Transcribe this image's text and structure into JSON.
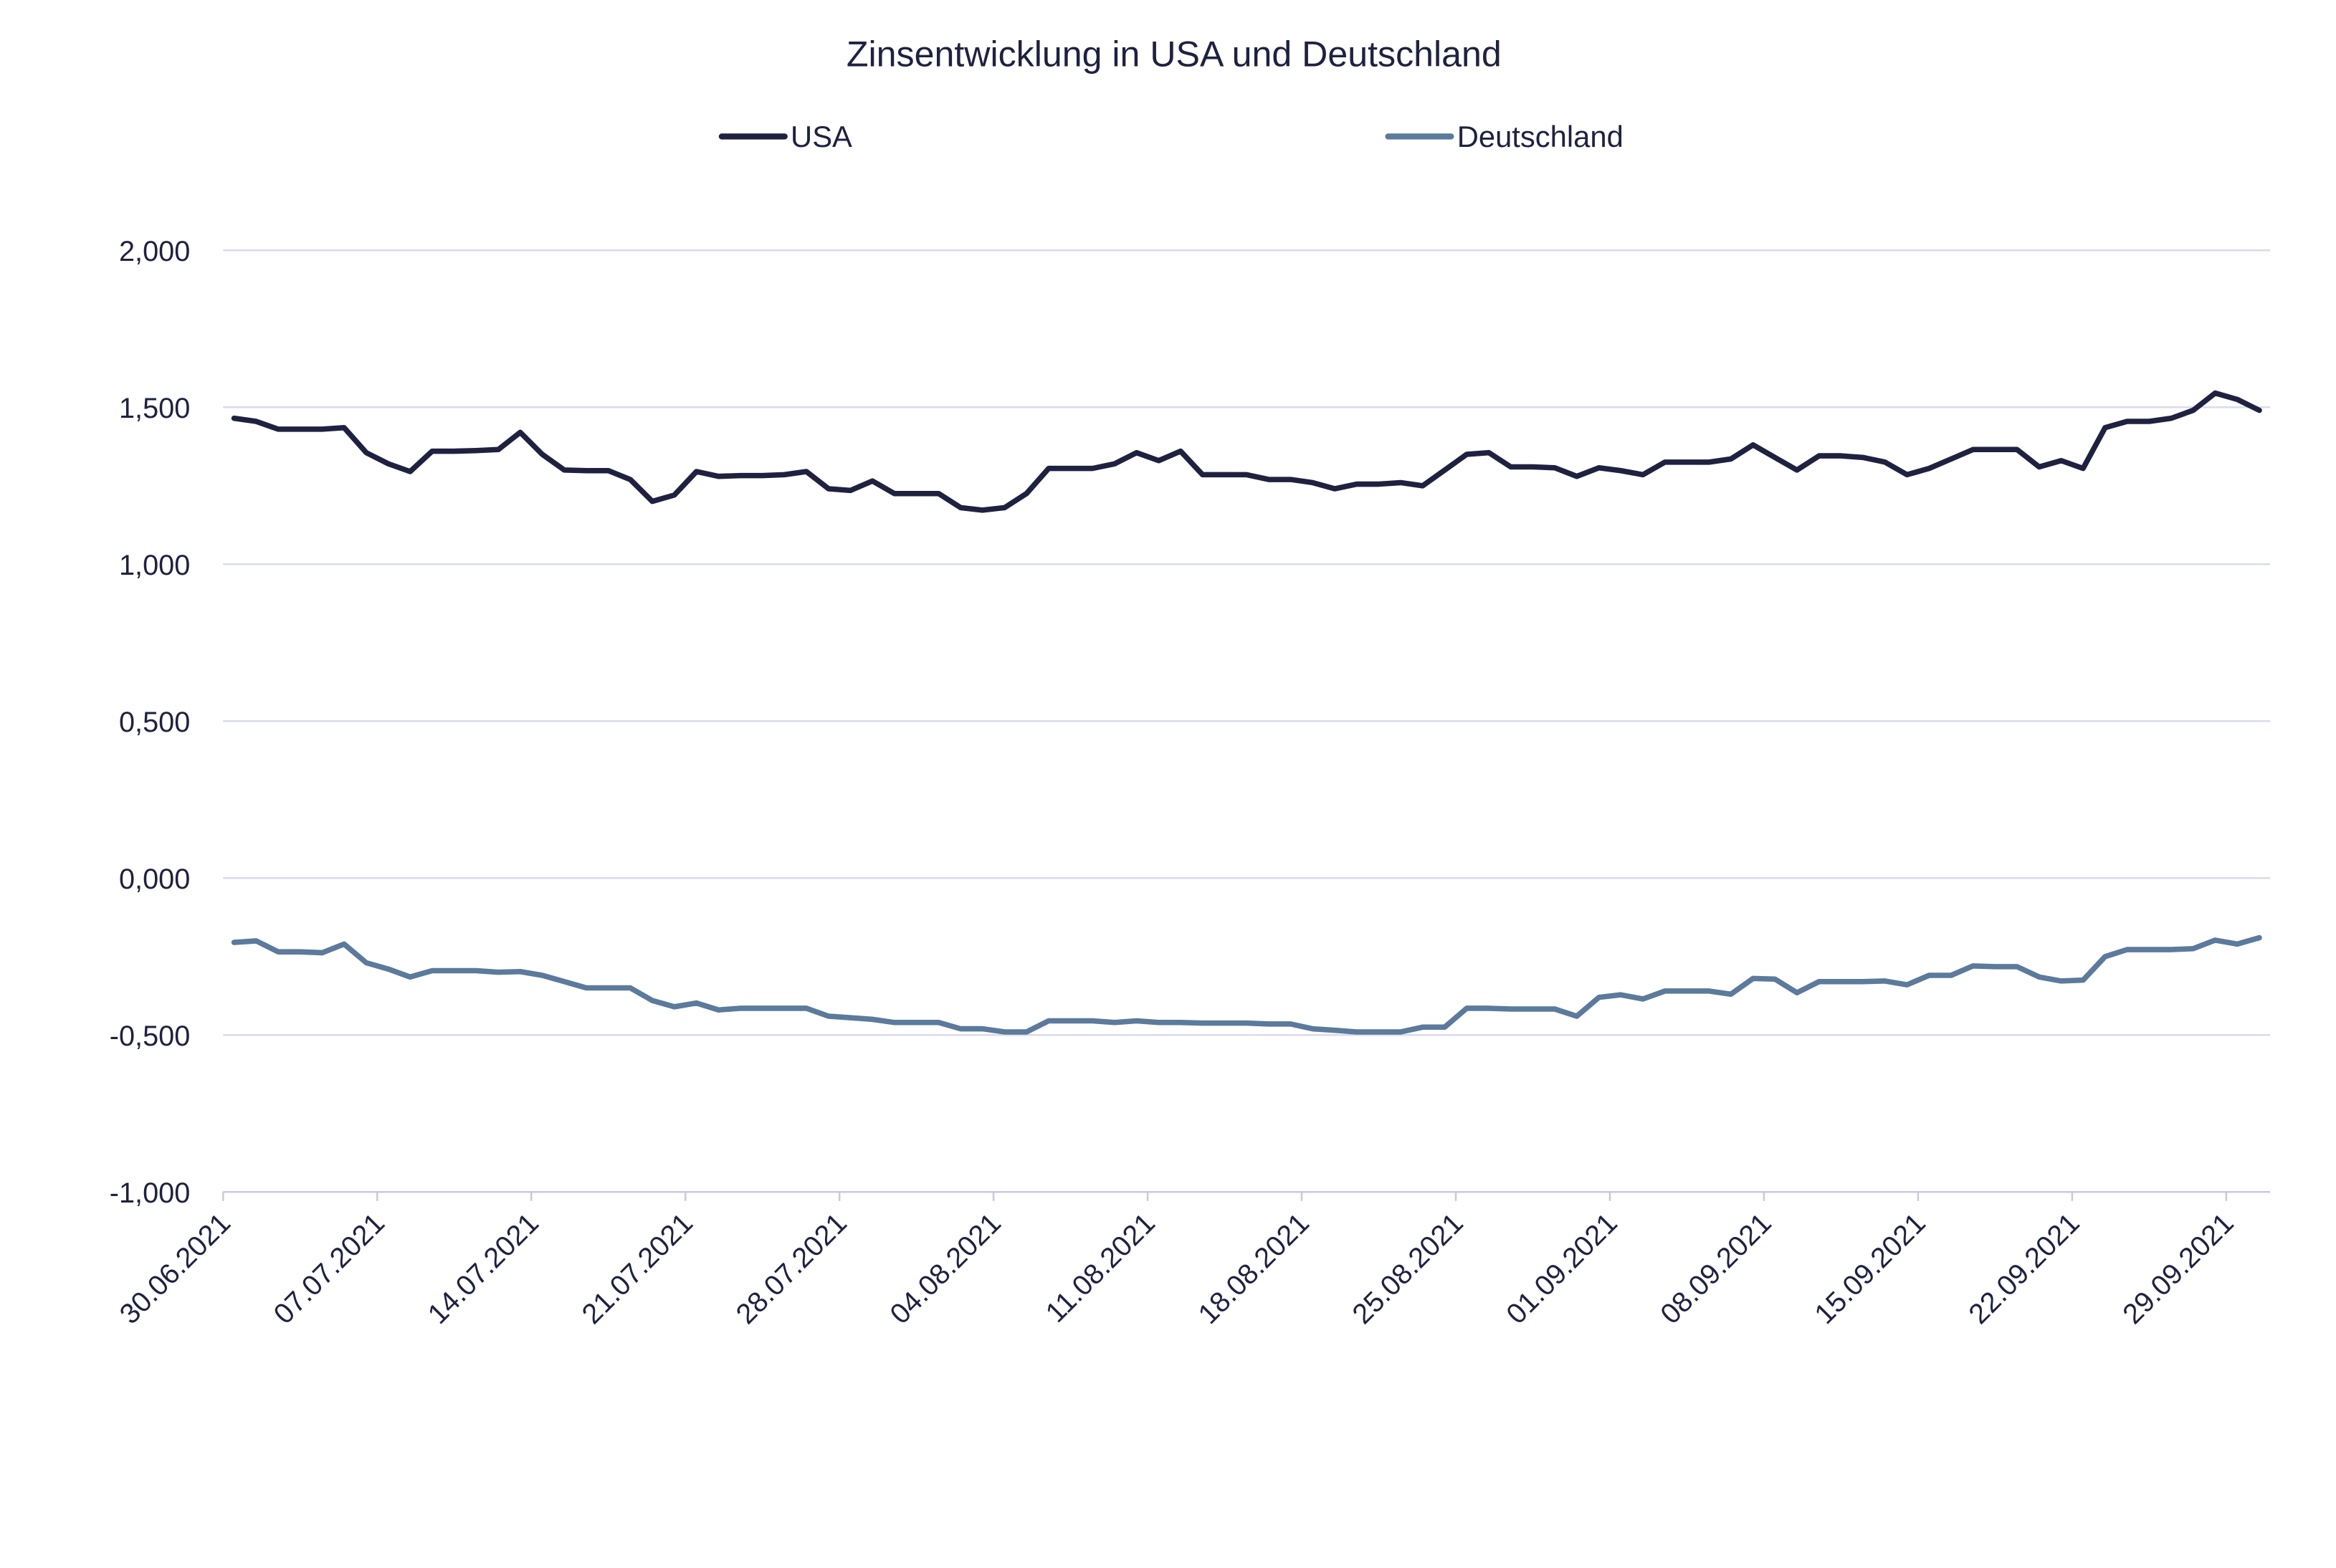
{
  "chart_data": {
    "type": "line",
    "title": "Zinsentwicklung in USA und Deutschland",
    "xlabel": "",
    "ylabel": "",
    "ylim": [
      -1,
      2
    ],
    "yticks": [
      "2,000",
      "1,500",
      "1,000",
      "0,500",
      "0,000",
      "-0,500",
      "-1,000"
    ],
    "ytick_values": [
      2,
      1.5,
      1,
      0.5,
      0,
      -0.5,
      -1
    ],
    "xtick_labels": [
      "30.06.2021",
      "07.07.2021",
      "14.07.2021",
      "21.07.2021",
      "28.07.2021",
      "04.08.2021",
      "11.08.2021",
      "18.08.2021",
      "25.08.2021",
      "01.09.2021",
      "08.09.2021",
      "15.09.2021",
      "22.09.2021",
      "29.09.2021"
    ],
    "grid": true,
    "legend": "top",
    "x": [
      "30.06.2021",
      "01.07.2021",
      "02.07.2021",
      "03.07.2021",
      "04.07.2021",
      "05.07.2021",
      "06.07.2021",
      "07.07.2021",
      "08.07.2021",
      "09.07.2021",
      "10.07.2021",
      "11.07.2021",
      "12.07.2021",
      "13.07.2021",
      "14.07.2021",
      "15.07.2021",
      "16.07.2021",
      "17.07.2021",
      "18.07.2021",
      "19.07.2021",
      "20.07.2021",
      "21.07.2021",
      "22.07.2021",
      "23.07.2021",
      "24.07.2021",
      "25.07.2021",
      "26.07.2021",
      "27.07.2021",
      "28.07.2021",
      "29.07.2021",
      "30.07.2021",
      "31.07.2021",
      "01.08.2021",
      "02.08.2021",
      "03.08.2021",
      "04.08.2021",
      "05.08.2021",
      "06.08.2021",
      "07.08.2021",
      "08.08.2021",
      "09.08.2021",
      "10.08.2021",
      "11.08.2021",
      "12.08.2021",
      "13.08.2021",
      "14.08.2021",
      "15.08.2021",
      "16.08.2021",
      "17.08.2021",
      "18.08.2021",
      "19.08.2021",
      "20.08.2021",
      "21.08.2021",
      "22.08.2021",
      "23.08.2021",
      "24.08.2021",
      "25.08.2021",
      "26.08.2021",
      "27.08.2021",
      "28.08.2021",
      "29.08.2021",
      "30.08.2021",
      "31.08.2021",
      "01.09.2021",
      "02.09.2021",
      "03.09.2021",
      "04.09.2021",
      "05.09.2021",
      "06.09.2021",
      "07.09.2021",
      "08.09.2021",
      "09.09.2021",
      "10.09.2021",
      "11.09.2021",
      "12.09.2021",
      "13.09.2021",
      "14.09.2021",
      "15.09.2021",
      "16.09.2021",
      "17.09.2021",
      "18.09.2021",
      "19.09.2021",
      "20.09.2021",
      "21.09.2021",
      "22.09.2021",
      "23.09.2021",
      "24.09.2021",
      "25.09.2021",
      "26.09.2021",
      "27.09.2021",
      "28.09.2021",
      "29.09.2021",
      "30.09.2021"
    ],
    "series": [
      {
        "name": "USA",
        "color": "#1f2140",
        "values": [
          1.465,
          1.455,
          1.43,
          1.43,
          1.43,
          1.435,
          1.355,
          1.32,
          1.295,
          1.36,
          1.36,
          1.362,
          1.365,
          1.42,
          1.35,
          1.3,
          1.298,
          1.298,
          1.27,
          1.2,
          1.22,
          1.295,
          1.28,
          1.282,
          1.282,
          1.285,
          1.295,
          1.24,
          1.235,
          1.265,
          1.225,
          1.225,
          1.225,
          1.18,
          1.172,
          1.18,
          1.225,
          1.305,
          1.305,
          1.305,
          1.32,
          1.355,
          1.33,
          1.36,
          1.285,
          1.285,
          1.285,
          1.27,
          1.27,
          1.26,
          1.24,
          1.255,
          1.255,
          1.26,
          1.25,
          1.3,
          1.35,
          1.355,
          1.31,
          1.31,
          1.307,
          1.28,
          1.307,
          1.298,
          1.285,
          1.325,
          1.325,
          1.325,
          1.335,
          1.38,
          1.34,
          1.3,
          1.345,
          1.345,
          1.34,
          1.325,
          1.285,
          1.305,
          1.335,
          1.365,
          1.365,
          1.365,
          1.31,
          1.33,
          1.305,
          1.435,
          1.455,
          1.455,
          1.465,
          1.49,
          1.545,
          1.525,
          1.49
        ]
      },
      {
        "name": "Deutschland",
        "color": "#5b7a9c",
        "values": [
          -0.205,
          -0.2,
          -0.235,
          -0.235,
          -0.238,
          -0.21,
          -0.27,
          -0.29,
          -0.315,
          -0.295,
          -0.295,
          -0.295,
          -0.3,
          -0.298,
          -0.31,
          -0.33,
          -0.35,
          -0.35,
          -0.35,
          -0.39,
          -0.41,
          -0.398,
          -0.42,
          -0.415,
          -0.415,
          -0.415,
          -0.415,
          -0.44,
          -0.445,
          -0.45,
          -0.46,
          -0.46,
          -0.46,
          -0.48,
          -0.48,
          -0.49,
          -0.49,
          -0.455,
          -0.455,
          -0.455,
          -0.46,
          -0.455,
          -0.46,
          -0.46,
          -0.462,
          -0.462,
          -0.462,
          -0.465,
          -0.465,
          -0.48,
          -0.485,
          -0.49,
          -0.49,
          -0.49,
          -0.475,
          -0.475,
          -0.415,
          -0.415,
          -0.417,
          -0.417,
          -0.417,
          -0.44,
          -0.38,
          -0.372,
          -0.385,
          -0.36,
          -0.36,
          -0.36,
          -0.37,
          -0.32,
          -0.322,
          -0.365,
          -0.33,
          -0.33,
          -0.33,
          -0.328,
          -0.34,
          -0.31,
          -0.31,
          -0.28,
          -0.282,
          -0.282,
          -0.315,
          -0.328,
          -0.325,
          -0.25,
          -0.228,
          -0.228,
          -0.228,
          -0.225,
          -0.198,
          -0.21,
          -0.19
        ]
      }
    ]
  }
}
